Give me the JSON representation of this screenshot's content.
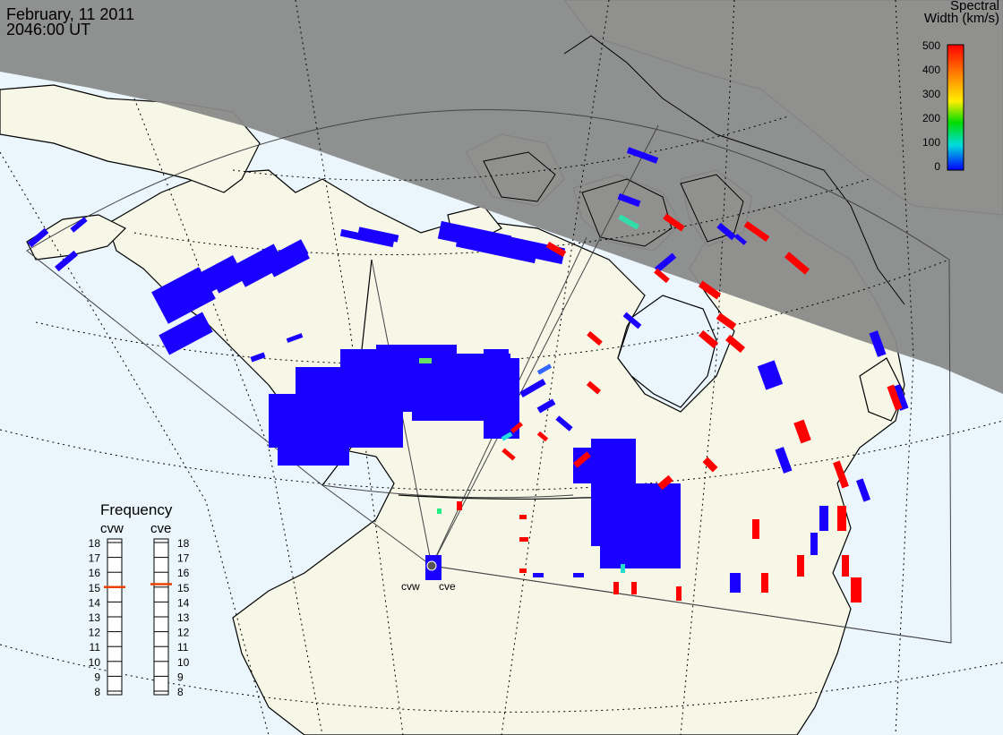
{
  "header": {
    "date": "February, 11 2011",
    "time": "2046:00 UT"
  },
  "colorbar": {
    "title_line1": "Spectral",
    "title_line2": "Width (km/s)",
    "ticks": [
      "500",
      "400",
      "300",
      "200",
      "100",
      "0"
    ],
    "stops": [
      "#ff0000",
      "#ff8800",
      "#ffee00",
      "#00dd00",
      "#00dddd",
      "#0000ff"
    ]
  },
  "frequency_panel": {
    "title": "Frequency",
    "radars": [
      {
        "name": "cvw",
        "value_mhz": 15
      },
      {
        "name": "cve",
        "value_mhz": 15.2
      }
    ],
    "scale": [
      "18",
      "17",
      "16",
      "15",
      "14",
      "13",
      "12",
      "11",
      "10",
      "9",
      "8"
    ]
  },
  "radar_site_labels": [
    "cvw",
    "cve"
  ],
  "colors": {
    "ocean": "#eaf6fc",
    "land": "#f7f7e8",
    "night": "#8a8a8a",
    "scatter_low": "#1a00ff",
    "scatter_high": "#ff0000"
  }
}
